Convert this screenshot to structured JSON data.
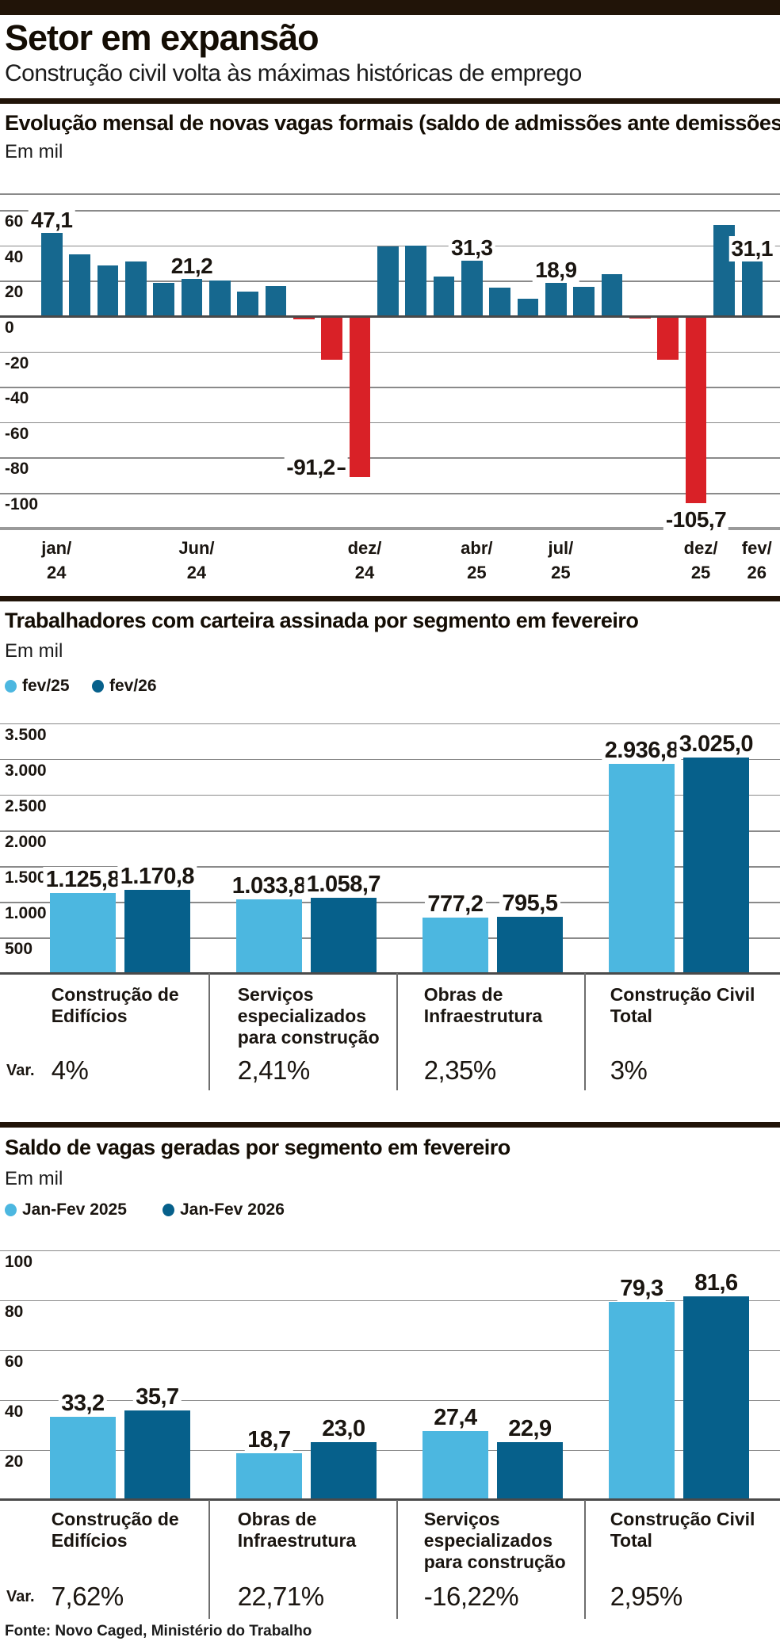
{
  "page": {
    "top_title": "Setor em expansão",
    "subtitle": "Construção civil volta às máximas históricas de emprego",
    "source": "Fonte: Novo Caged, Ministério do Trabalho"
  },
  "colors": {
    "positive_bar": "#16688f",
    "negative_bar": "#d92127",
    "series_light": "#4cb7e0",
    "series_dark": "#06608b",
    "rule": "#211408",
    "grid_line": "#8a8a8a",
    "zero_line": "#4a4a4a",
    "axis_line": "#9a9a9a",
    "var_row_bg": "#dcdcdc",
    "divider_line": "#6e6e6e",
    "text": "#1a1510"
  },
  "chart_data": [
    {
      "type": "bar",
      "title": "Evolução mensal de novas vagas formais (saldo de admissões ante demissões)",
      "unit_label": "Em mil",
      "x": [
        "jan/24",
        "fev/24",
        "mar/24",
        "abr/24",
        "mai/24",
        "jun/24",
        "jul/24",
        "ago/24",
        "set/24",
        "out/24",
        "nov/24",
        "dez/24",
        "jan/25",
        "fev/25",
        "mar/25",
        "abr/25",
        "mai/25",
        "jun/25",
        "jul/25",
        "ago/25",
        "set/25",
        "out/25",
        "nov/25",
        "dez/25",
        "jan/26",
        "fev/26"
      ],
      "values": [
        47.1,
        34.8,
        28.5,
        31.0,
        19.0,
        21.2,
        20.0,
        14.0,
        17.0,
        -2.0,
        -24.8,
        -91.2,
        39.5,
        40.0,
        22.4,
        31.3,
        16.0,
        9.7,
        18.9,
        16.7,
        23.9,
        -1.5,
        -24.6,
        -105.7,
        51.5,
        31.1
      ],
      "ylim": [
        -110,
        68
      ],
      "grid": true,
      "legend_position": "none",
      "yticks": [
        {
          "v": 60,
          "t": "60"
        },
        {
          "v": 40,
          "t": "40"
        },
        {
          "v": 20,
          "t": "20"
        },
        {
          "v": 0,
          "t": "0"
        },
        {
          "v": -20,
          "t": "-20"
        },
        {
          "v": -40,
          "t": "-40"
        },
        {
          "v": -60,
          "t": "-60"
        },
        {
          "v": -80,
          "t": "-80"
        },
        {
          "v": -100,
          "t": "-100"
        }
      ],
      "xticks": [
        {
          "bar": 0,
          "lines": [
            "jan/",
            "24"
          ]
        },
        {
          "bar": 5,
          "lines": [
            "Jun/",
            "24"
          ]
        },
        {
          "bar": 11,
          "lines": [
            "dez/",
            "24"
          ]
        },
        {
          "bar": 15,
          "lines": [
            "abr/",
            "25"
          ]
        },
        {
          "bar": 18,
          "lines": [
            "jul/",
            "25"
          ]
        },
        {
          "bar": 23,
          "lines": [
            "dez/",
            "25"
          ]
        },
        {
          "bar": 25,
          "lines": [
            "fev/",
            "26"
          ]
        }
      ],
      "labeled_points": [
        {
          "index": 0,
          "label": "47,1",
          "placement": "above"
        },
        {
          "index": 5,
          "label": "21,2",
          "placement": "above"
        },
        {
          "index": 11,
          "label": "-91,2",
          "placement": "left-of-bottom",
          "leader": true
        },
        {
          "index": 15,
          "label": "31,3",
          "placement": "above"
        },
        {
          "index": 18,
          "label": "18,9",
          "placement": "above"
        },
        {
          "index": 23,
          "label": "-105,7",
          "placement": "below"
        },
        {
          "index": 25,
          "label": "31,1",
          "placement": "above"
        }
      ]
    },
    {
      "type": "grouped_bar",
      "title": "Trabalhadores com carteira assinada por segmento em fevereiro",
      "unit_label": "Em mil",
      "legend": [
        {
          "label": "fev/25",
          "color_key": "series_light"
        },
        {
          "label": "fev/26",
          "color_key": "series_dark"
        }
      ],
      "categories": [
        [
          "Construção de",
          "Edifícios"
        ],
        [
          "Serviços",
          "especializados",
          "para construção"
        ],
        [
          "Obras de",
          "Infraestrutura"
        ],
        [
          "Construção Civil",
          "Total"
        ]
      ],
      "series": [
        {
          "name": "fev/25",
          "values": [
            1125.8,
            1033.8,
            777.2,
            2936.8
          ],
          "value_labels": [
            "1.125,8",
            "1.033,8",
            "777,2",
            "2.936,8"
          ]
        },
        {
          "name": "fev/26",
          "values": [
            1170.8,
            1058.7,
            795.5,
            3025.0
          ],
          "value_labels": [
            "1.170,8",
            "1.058,7",
            "795,5",
            "3.025,0"
          ]
        }
      ],
      "ylim": [
        0,
        3700
      ],
      "grid": true,
      "yticks": [
        {
          "v": 3500,
          "t": "3.500"
        },
        {
          "v": 3000,
          "t": "3.000"
        },
        {
          "v": 2500,
          "t": "2.500"
        },
        {
          "v": 2000,
          "t": "2.000"
        },
        {
          "v": 1500,
          "t": "1.500"
        },
        {
          "v": 1000,
          "t": "1.000"
        },
        {
          "v": 500,
          "t": "500"
        }
      ],
      "var_row": {
        "label": "Var.",
        "values": [
          "4%",
          "2,41%",
          "2,35%",
          "3%"
        ]
      }
    },
    {
      "type": "grouped_bar",
      "title": "Saldo de vagas geradas por segmento em fevereiro",
      "unit_label": "Em mil",
      "legend": [
        {
          "label": "Jan-Fev 2025",
          "color_key": "series_light"
        },
        {
          "label": "Jan-Fev 2026",
          "color_key": "series_dark"
        }
      ],
      "categories": [
        [
          "Construção de",
          "Edifícios"
        ],
        [
          "Obras de",
          "Infraestrutura"
        ],
        [
          "Serviços",
          "especializados",
          "para construção"
        ],
        [
          "Construção Civil",
          "Total"
        ]
      ],
      "series": [
        {
          "name": "Jan-Fev 2025",
          "values": [
            33.2,
            18.7,
            27.4,
            79.3
          ],
          "value_labels": [
            "33,2",
            "18,7",
            "27,4",
            "79,3"
          ]
        },
        {
          "name": "Jan-Fev 2026",
          "values": [
            35.7,
            23.0,
            22.9,
            81.6
          ],
          "value_labels": [
            "35,7",
            "23,0",
            "22,9",
            "81,6"
          ]
        }
      ],
      "ylim": [
        0,
        105
      ],
      "grid": true,
      "yticks": [
        {
          "v": 100,
          "t": "100"
        },
        {
          "v": 80,
          "t": "80"
        },
        {
          "v": 60,
          "t": "60"
        },
        {
          "v": 40,
          "t": "40"
        },
        {
          "v": 20,
          "t": "20"
        }
      ],
      "var_row": {
        "label": "Var.",
        "values": [
          "7,62%",
          "22,71%",
          "-16,22%",
          "2,95%"
        ]
      }
    }
  ]
}
